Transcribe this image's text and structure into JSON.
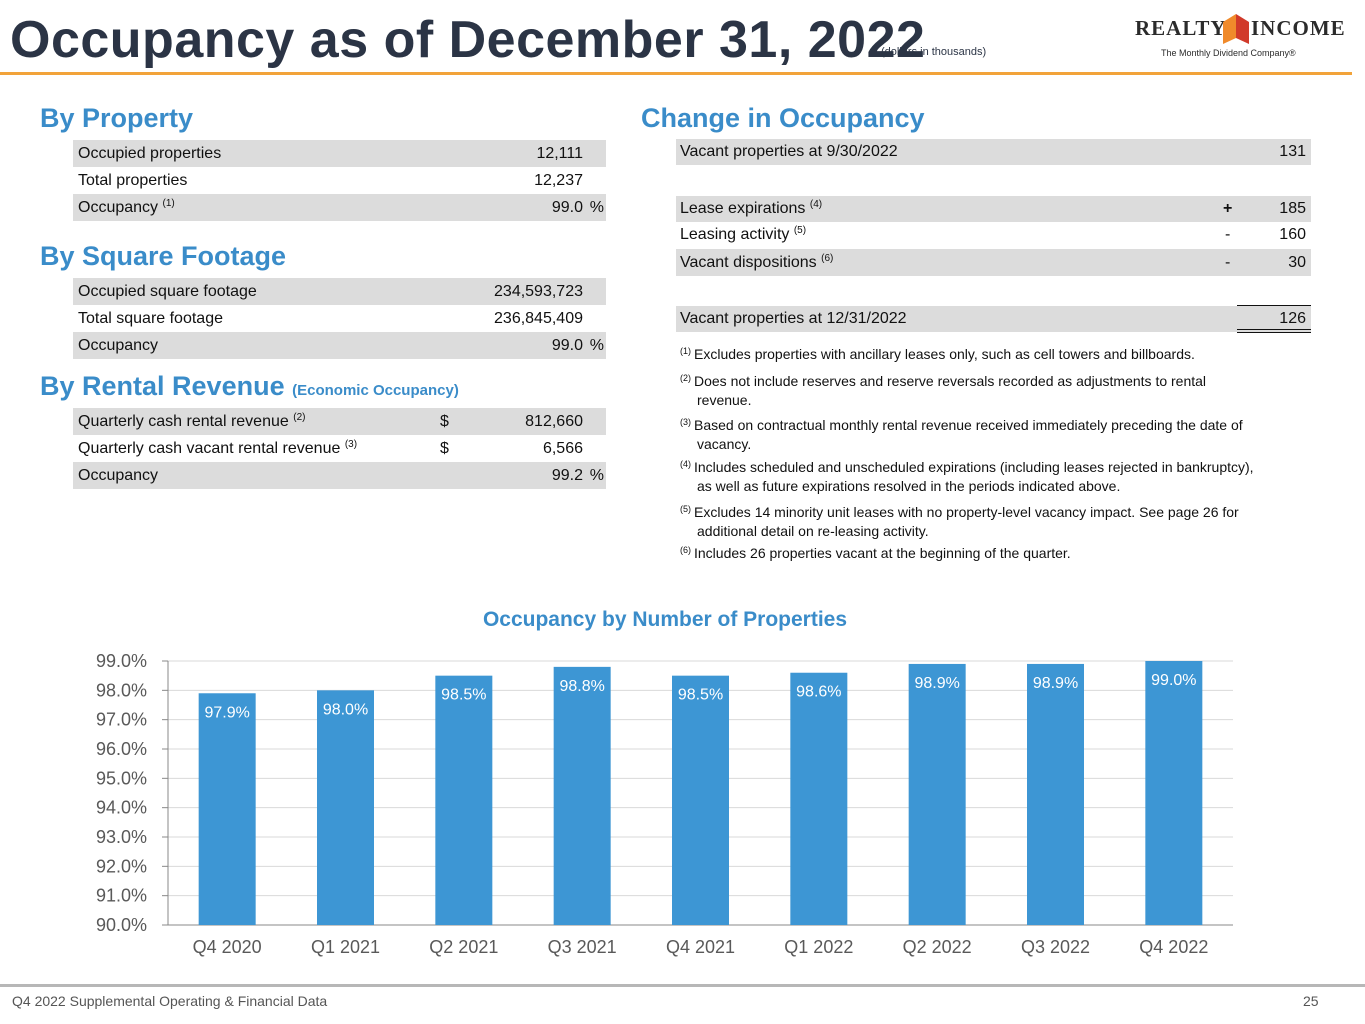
{
  "header": {
    "title": "Occupancy as of December 31, 2022",
    "subtitle": "(dollars in thousands)",
    "logo_left": "REALTY",
    "logo_right": "INCOME",
    "logo_tagline": "The Monthly Dividend Company®"
  },
  "by_property": {
    "heading": "By Property",
    "rows": [
      {
        "label": "Occupied properties",
        "sup": "",
        "value": "12,111",
        "unit": ""
      },
      {
        "label": "Total properties",
        "sup": "",
        "value": "12,237",
        "unit": ""
      },
      {
        "label": "Occupancy",
        "sup": "(1)",
        "value": "99.0",
        "unit": "%"
      }
    ]
  },
  "by_square_footage": {
    "heading": "By Square Footage",
    "rows": [
      {
        "label": "Occupied square footage",
        "value": "234,593,723",
        "unit": ""
      },
      {
        "label": "Total square footage",
        "value": "236,845,409",
        "unit": ""
      },
      {
        "label": "Occupancy",
        "value": "99.0",
        "unit": "%"
      }
    ]
  },
  "by_rental_revenue": {
    "heading": "By Rental Revenue",
    "heading_note": "(Economic Occupancy)",
    "rows": [
      {
        "label": "Quarterly cash rental revenue",
        "sup": "(2)",
        "currency": "$",
        "value": "812,660",
        "unit": ""
      },
      {
        "label": "Quarterly cash vacant rental revenue",
        "sup": "(3)",
        "currency": "$",
        "value": "6,566",
        "unit": ""
      },
      {
        "label": "Occupancy",
        "sup": "",
        "currency": "",
        "value": "99.2",
        "unit": "%"
      }
    ]
  },
  "change_in_occupancy": {
    "heading": "Change in Occupancy",
    "start": {
      "label": "Vacant properties at 9/30/2022",
      "value": "131"
    },
    "changes": [
      {
        "label": "Lease expirations",
        "sup": "(4)",
        "sign": "+",
        "value": "185"
      },
      {
        "label": "Leasing activity",
        "sup": "(5)",
        "sign": "-",
        "value": "160"
      },
      {
        "label": "Vacant dispositions",
        "sup": "(6)",
        "sign": "-",
        "value": "30"
      }
    ],
    "end": {
      "label": "Vacant properties at 12/31/2022",
      "value": "126"
    }
  },
  "footnotes": [
    {
      "num": "(1)",
      "line1": "Excludes properties with ancillary leases only, such as cell towers and billboards.",
      "line2": ""
    },
    {
      "num": "(2)",
      "line1": "Does not include reserves and reserve reversals recorded as adjustments to rental",
      "line2": "revenue."
    },
    {
      "num": "(3)",
      "line1": "Based on contractual monthly rental revenue received immediately preceding the date of",
      "line2": "vacancy."
    },
    {
      "num": "(4)",
      "line1": "Includes scheduled and unscheduled expirations (including leases rejected in bankruptcy),",
      "line2": "as well as future expirations resolved in the periods indicated above."
    },
    {
      "num": "(5)",
      "line1": "Excludes 14 minority unit leases with no property-level vacancy impact. See page 26 for",
      "line2": "additional detail on re-leasing activity."
    },
    {
      "num": "(6)",
      "line1": "Includes 26 properties vacant at the beginning of the quarter.",
      "line2": ""
    }
  ],
  "chart_data": {
    "type": "bar",
    "title": "Occupancy by Number of Properties",
    "categories": [
      "Q4 2020",
      "Q1 2021",
      "Q2 2021",
      "Q3 2021",
      "Q4 2021",
      "Q1 2022",
      "Q2 2022",
      "Q3 2022",
      "Q4 2022"
    ],
    "values": [
      97.9,
      98.0,
      98.5,
      98.8,
      98.5,
      98.6,
      98.9,
      98.9,
      99.0
    ],
    "labels": [
      "97.9%",
      "98.0%",
      "98.5%",
      "98.8%",
      "98.5%",
      "98.6%",
      "98.9%",
      "98.9%",
      "99.0%"
    ],
    "ylim": [
      90.0,
      99.0
    ],
    "yticks": [
      "90.0%",
      "91.0%",
      "92.0%",
      "93.0%",
      "94.0%",
      "95.0%",
      "96.0%",
      "97.0%",
      "98.0%",
      "99.0%"
    ],
    "xlabel": "",
    "ylabel": "",
    "grid": true,
    "bar_color": "#3d96d4"
  },
  "footer": {
    "left": "Q4 2022 Supplemental Operating & Financial Data",
    "page": "25"
  }
}
